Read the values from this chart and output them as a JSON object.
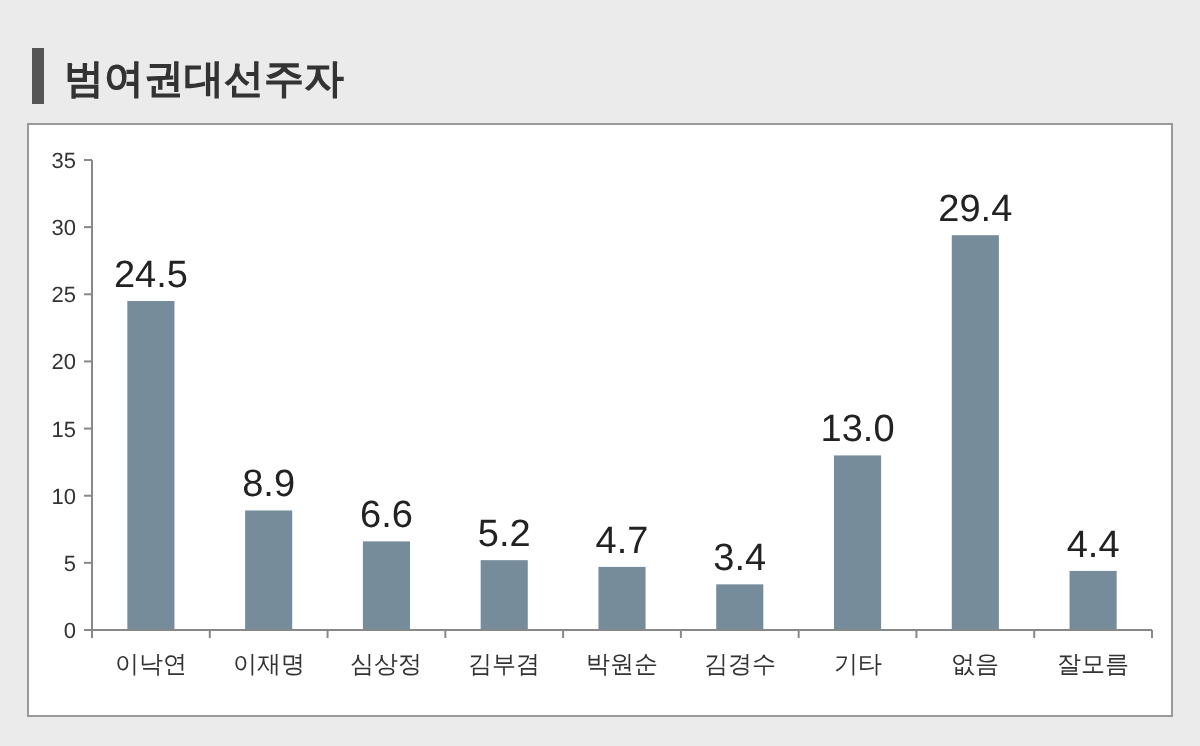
{
  "chart_data": {
    "type": "bar",
    "title": "범여권대선주자",
    "categories": [
      "이낙연",
      "이재명",
      "심상정",
      "김부겸",
      "박원순",
      "김경수",
      "기타",
      "없음",
      "잘모름"
    ],
    "values": [
      24.5,
      8.9,
      6.6,
      5.2,
      4.7,
      3.4,
      13.0,
      29.4,
      4.4
    ],
    "value_labels": [
      "24.5",
      "8.9",
      "6.6",
      "5.2",
      "4.7",
      "3.4",
      "13.0",
      "29.4",
      "4.4"
    ],
    "color": "#778c9b",
    "ylim": [
      0,
      35
    ],
    "yticks": [
      0,
      5,
      10,
      15,
      20,
      25,
      30,
      35
    ],
    "grid": false
  }
}
